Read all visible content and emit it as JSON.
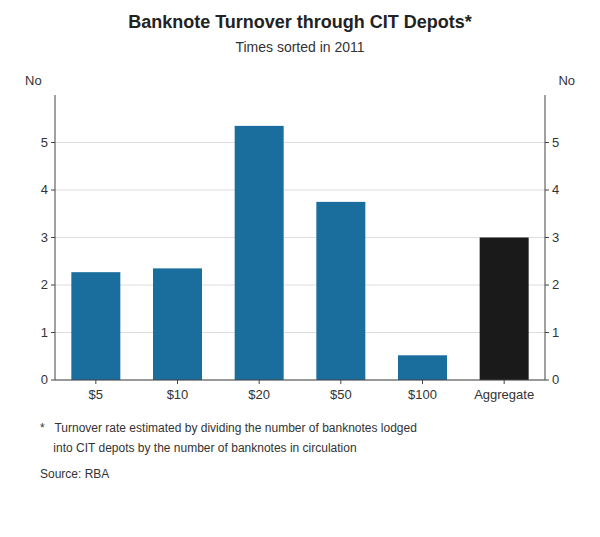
{
  "chart_data": {
    "type": "bar",
    "title": "Banknote Turnover through CIT Depots*",
    "subtitle": "Times sorted in 2011",
    "categories": [
      "$5",
      "$10",
      "$20",
      "$50",
      "$100",
      "Aggregate"
    ],
    "values": [
      2.27,
      2.35,
      5.35,
      3.75,
      0.52,
      3.0
    ],
    "colors": [
      "#1a6e9e",
      "#1a6e9e",
      "#1a6e9e",
      "#1a6e9e",
      "#1a6e9e",
      "#1a1a1a"
    ],
    "ylabel": "No",
    "y2label": "No",
    "ylim": [
      0,
      6.0
    ],
    "yticks": [
      0,
      1,
      2,
      3,
      4,
      5
    ],
    "y2lim": [
      0,
      6.0
    ],
    "y2ticks": [
      0,
      1,
      2,
      3,
      4,
      5
    ],
    "grid": true,
    "annotations": [
      "*   Turnover rate estimated by dividing the number of banknotes lodged",
      "    into CIT depots by the number of banknotes in circulation",
      "Source: RBA"
    ]
  }
}
